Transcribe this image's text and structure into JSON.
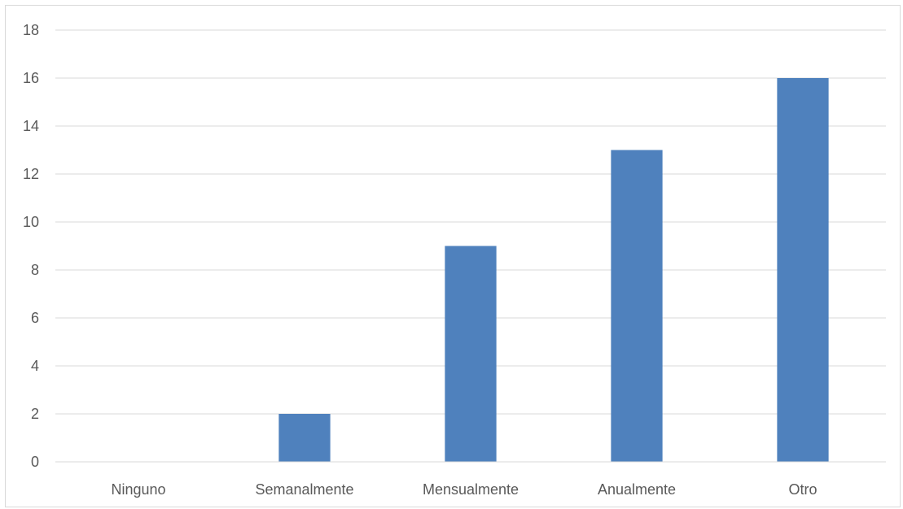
{
  "chart_data": {
    "type": "bar",
    "title": "",
    "xlabel": "",
    "ylabel": "",
    "categories": [
      "Ninguno",
      "Semanalmente",
      "Mensualmente",
      "Anualmente",
      "Otro"
    ],
    "values": [
      0,
      2,
      9,
      13,
      16
    ],
    "ylim": [
      0,
      18
    ],
    "yticks": [
      0,
      2,
      4,
      6,
      8,
      10,
      12,
      14,
      16,
      18
    ],
    "grid": true,
    "legend": "none",
    "colors": {
      "bar": "#4f81bd",
      "grid": "#d9d9d9",
      "text": "#595959"
    }
  }
}
